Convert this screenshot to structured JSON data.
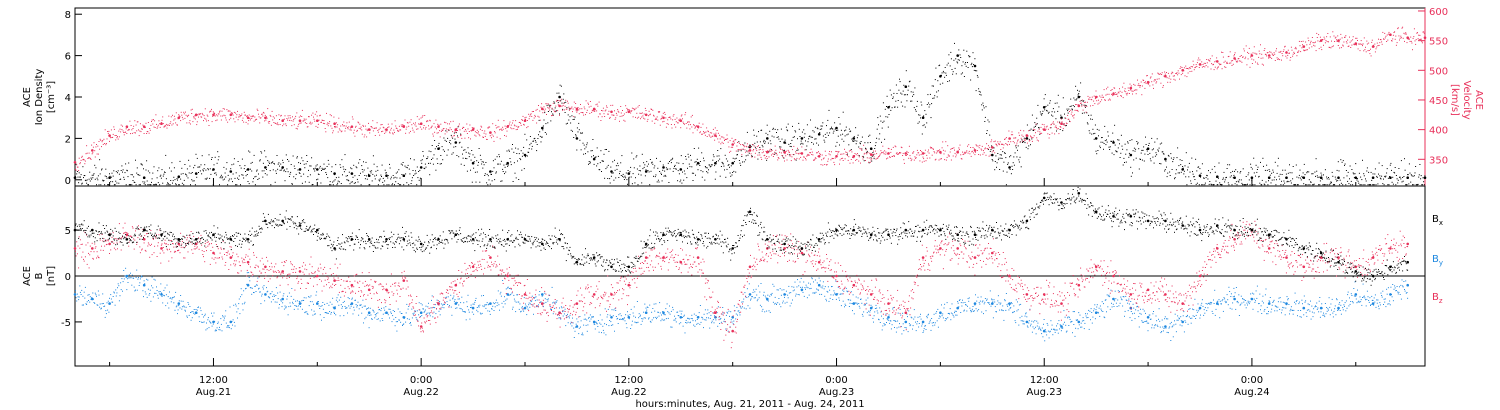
{
  "chart_data": [
    {
      "type": "scatter",
      "panel": "top",
      "xlabel": "hours:minutes, Aug. 21, 2011 - Aug. 24, 2011",
      "x_unit": "hours since 2011-08-21 00:00",
      "x_ticks": [
        {
          "x": 12,
          "time": "12:00",
          "date": "Aug.21"
        },
        {
          "x": 24,
          "time": "0:00",
          "date": "Aug.22"
        },
        {
          "x": 36,
          "time": "12:00",
          "date": "Aug.22"
        },
        {
          "x": 48,
          "time": "0:00",
          "date": "Aug.23"
        },
        {
          "x": 60,
          "time": "12:00",
          "date": "Aug.23"
        },
        {
          "x": 72,
          "time": "0:00",
          "date": "Aug.24"
        }
      ],
      "xlim": [
        4,
        82
      ],
      "left_axis": {
        "label": [
          "ACE",
          "Ion Density",
          "[cm⁻³]"
        ],
        "ylim": [
          -0.3,
          8.3
        ],
        "ticks": [
          0,
          2,
          4,
          6,
          8
        ],
        "color": "#000000"
      },
      "right_axis": {
        "label": [
          "ACE",
          "Velocity",
          "[km/s]"
        ],
        "ylim": [
          305,
          605
        ],
        "ticks": [
          350,
          400,
          450,
          500,
          550,
          600
        ],
        "color": "#e8305a"
      },
      "series": [
        {
          "name": "Ion Density",
          "axis": "left",
          "color": "#000000",
          "x": [
            4,
            6,
            8,
            10,
            11,
            12,
            13,
            14,
            15,
            16,
            17,
            18,
            19,
            20,
            21,
            22,
            23,
            24,
            25,
            26,
            27,
            28,
            29,
            30,
            31,
            32,
            33,
            34,
            35,
            36,
            37,
            38,
            39,
            40,
            41,
            42,
            43,
            44,
            45,
            46,
            47,
            48,
            49,
            50,
            51,
            52,
            53,
            54,
            55,
            56,
            57,
            58,
            59,
            60,
            61,
            62,
            63,
            64,
            65,
            66,
            67,
            68,
            69,
            70,
            71,
            72,
            73,
            74,
            75,
            76,
            77,
            78,
            79,
            80,
            81,
            82
          ],
          "y": [
            0.1,
            0.1,
            0.1,
            0.15,
            0.3,
            0.5,
            0.4,
            0.5,
            0.6,
            0.6,
            0.5,
            0.5,
            0.3,
            0.3,
            0.2,
            0.2,
            0.2,
            0.6,
            1.5,
            1.8,
            0.8,
            0.4,
            0.8,
            1.2,
            2.5,
            4.0,
            2.0,
            1.0,
            0.4,
            0.3,
            0.4,
            0.6,
            0.5,
            0.8,
            0.8,
            0.8,
            1.6,
            2.0,
            1.8,
            2.0,
            2.2,
            2.5,
            2.0,
            1.5,
            3.5,
            4.5,
            3.0,
            5.0,
            6.0,
            5.5,
            1.2,
            0.6,
            2.0,
            3.5,
            3.0,
            4.0,
            2.0,
            1.8,
            1.2,
            1.5,
            1.0,
            0.5,
            0.2,
            0.15,
            0.1,
            0.1,
            0.1,
            0.1,
            0.1,
            0.1,
            0.1,
            0.1,
            0.1,
            0.1,
            0.1,
            0.1
          ]
        },
        {
          "name": "Velocity",
          "axis": "right",
          "color": "#e8305a",
          "x": [
            4,
            5,
            6,
            7,
            8,
            9,
            10,
            11,
            12,
            13,
            14,
            15,
            16,
            17,
            18,
            19,
            20,
            21,
            22,
            23,
            24,
            25,
            26,
            27,
            28,
            29,
            30,
            31,
            32,
            33,
            34,
            35,
            36,
            37,
            38,
            39,
            40,
            41,
            42,
            43,
            44,
            45,
            46,
            47,
            48,
            49,
            50,
            51,
            52,
            53,
            54,
            55,
            56,
            57,
            58,
            59,
            60,
            61,
            62,
            63,
            64,
            65,
            66,
            67,
            68,
            69,
            70,
            71,
            72,
            73,
            74,
            75,
            76,
            77,
            78,
            79,
            80,
            81,
            82
          ],
          "y": [
            345,
            365,
            390,
            405,
            405,
            410,
            420,
            425,
            425,
            425,
            420,
            420,
            415,
            415,
            415,
            410,
            405,
            400,
            400,
            405,
            410,
            405,
            400,
            400,
            395,
            405,
            415,
            435,
            440,
            435,
            435,
            430,
            430,
            425,
            420,
            415,
            405,
            390,
            375,
            365,
            362,
            362,
            360,
            355,
            355,
            355,
            358,
            360,
            360,
            360,
            362,
            362,
            365,
            370,
            385,
            390,
            400,
            410,
            440,
            455,
            460,
            470,
            480,
            490,
            500,
            510,
            515,
            520,
            525,
            525,
            530,
            540,
            550,
            550,
            545,
            540,
            560,
            555,
            555
          ]
        }
      ]
    },
    {
      "type": "scatter",
      "panel": "bottom",
      "xlabel": "hours:minutes, Aug. 21, 2011 - Aug. 24, 2011",
      "x_unit": "hours since 2011-08-21 00:00",
      "xlim": [
        4,
        82
      ],
      "y_axis": {
        "label": [
          "ACE",
          "B",
          "[nT]"
        ],
        "ylim": [
          -9.8,
          9.8
        ],
        "ticks": [
          -5,
          0,
          5
        ]
      },
      "zero_line": true,
      "series": [
        {
          "name": "Bx",
          "label": "B",
          "subscript": "x",
          "color": "#000000",
          "x": [
            4,
            5,
            6,
            7,
            8,
            9,
            10,
            11,
            12,
            13,
            14,
            15,
            16,
            17,
            18,
            19,
            20,
            21,
            22,
            23,
            24,
            25,
            26,
            27,
            28,
            29,
            30,
            31,
            32,
            33,
            34,
            35,
            36,
            37,
            38,
            39,
            40,
            41,
            42,
            43,
            44,
            45,
            46,
            47,
            48,
            49,
            50,
            51,
            52,
            53,
            54,
            55,
            56,
            57,
            58,
            59,
            60,
            61,
            62,
            63,
            64,
            65,
            66,
            67,
            68,
            69,
            70,
            71,
            72,
            73,
            74,
            75,
            76,
            77,
            78,
            79,
            80,
            81
          ],
          "y": [
            5,
            5,
            4.5,
            4,
            5,
            4.5,
            4,
            4,
            4.5,
            4,
            4,
            6,
            6,
            5.5,
            5,
            3,
            4,
            4,
            4,
            4,
            3.5,
            4,
            4.5,
            4,
            4,
            4,
            4,
            3.5,
            4,
            1.5,
            2,
            1,
            1,
            3.5,
            4.5,
            4.5,
            4,
            4,
            3,
            7,
            4,
            3.5,
            3,
            4,
            5,
            5,
            4.5,
            4.5,
            5,
            5,
            5,
            4.5,
            4.5,
            5,
            5,
            6,
            8.5,
            8,
            9,
            7,
            6.5,
            6.5,
            6,
            6,
            5.5,
            5,
            5.5,
            5,
            5,
            4.5,
            4,
            3,
            2.5,
            1.5,
            0.5,
            0,
            1,
            1.5
          ]
        },
        {
          "name": "By",
          "label": "B",
          "subscript": "y",
          "color": "#1e88e0",
          "x": [
            4,
            5,
            6,
            7,
            8,
            9,
            10,
            11,
            12,
            13,
            14,
            15,
            16,
            17,
            18,
            19,
            20,
            21,
            22,
            23,
            24,
            25,
            26,
            27,
            28,
            29,
            30,
            31,
            32,
            33,
            34,
            35,
            36,
            37,
            38,
            39,
            40,
            41,
            42,
            43,
            44,
            45,
            46,
            47,
            48,
            49,
            50,
            51,
            52,
            53,
            54,
            55,
            56,
            57,
            58,
            59,
            60,
            61,
            62,
            63,
            64,
            65,
            66,
            67,
            68,
            69,
            70,
            71,
            72,
            73,
            74,
            75,
            76,
            77,
            78,
            79,
            80,
            81
          ],
          "y": [
            -2,
            -2.5,
            -3,
            0,
            -1,
            -2,
            -3,
            -4,
            -5,
            -5,
            -1,
            -2,
            -2.5,
            -3,
            -3,
            -3.5,
            -3,
            -4,
            -4,
            -4.5,
            -4,
            -3,
            -3,
            -3.5,
            -3,
            -2,
            -3.5,
            -2,
            -4,
            -5.5,
            -5,
            -4.5,
            -4.5,
            -4,
            -4,
            -4.5,
            -4.5,
            -4.5,
            -4.5,
            -2,
            -2.5,
            -2,
            -1.5,
            -1,
            -2,
            -3,
            -3.5,
            -4.5,
            -5,
            -5,
            -4,
            -3.5,
            -3,
            -3,
            -3,
            -5,
            -6,
            -5.5,
            -5,
            -4,
            -2.5,
            -3.5,
            -4.5,
            -5.5,
            -5,
            -3.5,
            -3,
            -2.5,
            -2.5,
            -3,
            -3,
            -3.5,
            -3.5,
            -3.5,
            -2,
            -3,
            -2,
            -1
          ]
        },
        {
          "name": "Bz",
          "label": "B",
          "subscript": "z",
          "color": "#e8305a",
          "x": [
            4,
            5,
            6,
            7,
            8,
            9,
            10,
            11,
            12,
            13,
            14,
            15,
            16,
            17,
            18,
            19,
            20,
            21,
            22,
            23,
            24,
            25,
            26,
            27,
            28,
            29,
            30,
            31,
            32,
            33,
            34,
            35,
            36,
            37,
            38,
            39,
            40,
            41,
            42,
            43,
            44,
            45,
            46,
            47,
            48,
            49,
            50,
            51,
            52,
            53,
            54,
            55,
            56,
            57,
            58,
            59,
            60,
            61,
            62,
            63,
            64,
            65,
            66,
            67,
            68,
            69,
            70,
            71,
            72,
            73,
            74,
            75,
            76,
            77,
            78,
            79,
            80,
            81
          ],
          "y": [
            3,
            3,
            3.5,
            4.5,
            4,
            3,
            3.5,
            3.5,
            2.5,
            2,
            1.5,
            1,
            0.5,
            0.5,
            0,
            -0.5,
            -1,
            -1.5,
            -1.5,
            -0.5,
            -5.5,
            -3,
            -1,
            1,
            2,
            0,
            -2,
            -3,
            -4,
            -3,
            -2,
            -2,
            -1,
            2,
            2,
            1.5,
            2,
            -4,
            -6,
            1,
            3,
            3,
            2.5,
            1.5,
            0,
            -1,
            -2,
            -3,
            -4,
            2,
            3,
            3,
            2,
            2.5,
            0,
            -2,
            -2,
            -3,
            -1,
            1,
            0,
            -2,
            -1.5,
            -2,
            -3,
            0,
            3,
            4,
            5,
            3,
            2,
            1,
            2,
            2,
            1,
            2,
            3,
            3.5
          ]
        }
      ]
    }
  ]
}
